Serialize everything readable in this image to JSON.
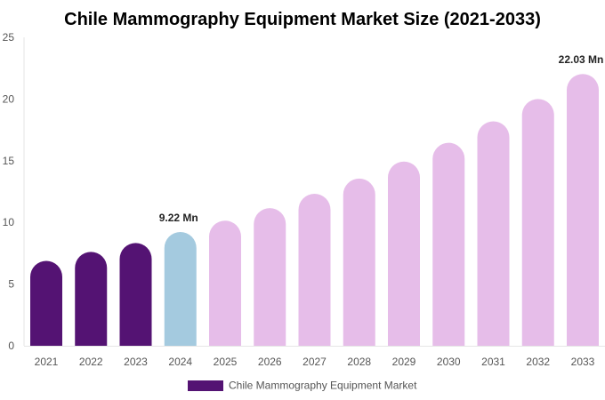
{
  "chart_data": {
    "type": "bar",
    "title": "Chile Mammography Equipment Market Size (2021-2033)",
    "categories": [
      "2021",
      "2022",
      "2023",
      "2024",
      "2025",
      "2026",
      "2027",
      "2028",
      "2029",
      "2030",
      "2031",
      "2032",
      "2033"
    ],
    "series": [
      {
        "name": "Chile Mammography Equipment Market",
        "values": [
          6.88,
          7.61,
          8.33,
          9.22,
          10.14,
          11.16,
          12.32,
          13.55,
          14.93,
          16.45,
          18.19,
          20.0,
          22.03
        ]
      }
    ],
    "ylim": [
      0,
      25
    ],
    "yticks": [
      0,
      5,
      10,
      15,
      20,
      25
    ],
    "data_labels": [
      {
        "category": "2024",
        "text": "9.22 Mn"
      },
      {
        "category": "2033",
        "text": "22.03 Mn"
      }
    ],
    "colors": {
      "historical": "#541373",
      "current": "#a4cadf",
      "forecast": "#e6bde9"
    },
    "color_groups": [
      "historical",
      "historical",
      "historical",
      "current",
      "forecast",
      "forecast",
      "forecast",
      "forecast",
      "forecast",
      "forecast",
      "forecast",
      "forecast",
      "forecast"
    ],
    "grid": false,
    "legend": "bottom"
  }
}
